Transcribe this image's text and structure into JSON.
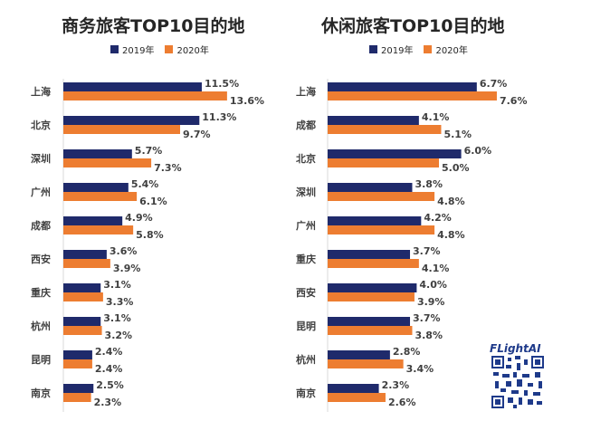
{
  "chart_data": [
    {
      "type": "bar",
      "title": "商务旅客TOP10目的地",
      "categories": [
        "上海",
        "北京",
        "深圳",
        "广州",
        "成都",
        "西安",
        "重庆",
        "杭州",
        "昆明",
        "南京"
      ],
      "series": [
        {
          "name": "2019年",
          "values": [
            11.5,
            11.3,
            5.7,
            5.4,
            4.9,
            3.6,
            3.1,
            3.1,
            2.4,
            2.5
          ],
          "labels": [
            "11.5%",
            "11.3%",
            "5.7%",
            "5.4%",
            "4.9%",
            "3.6%",
            "3.1%",
            "3.1%",
            "2.4%",
            "2.5%"
          ]
        },
        {
          "name": "2020年",
          "values": [
            13.6,
            9.7,
            7.3,
            6.1,
            5.8,
            3.9,
            3.3,
            3.2,
            2.4,
            2.3
          ],
          "labels": [
            "13.6%",
            "9.7%",
            "7.3%",
            "6.1%",
            "5.8%",
            "3.9%",
            "3.3%",
            "3.2%",
            "2.4%",
            "2.3%"
          ]
        }
      ],
      "orientation": "horizontal",
      "legend": "top"
    },
    {
      "type": "bar",
      "title": "休闲旅客TOP10目的地",
      "categories": [
        "上海",
        "成都",
        "北京",
        "深圳",
        "广州",
        "重庆",
        "西安",
        "昆明",
        "杭州",
        "南京"
      ],
      "series": [
        {
          "name": "2019年",
          "values": [
            6.7,
            4.1,
            6.0,
            3.8,
            4.2,
            3.7,
            4.0,
            3.7,
            2.8,
            2.3
          ],
          "labels": [
            "6.7%",
            "4.1%",
            "6.0%",
            "3.8%",
            "4.2%",
            "3.7%",
            "4.0%",
            "3.7%",
            "2.8%",
            "2.3%"
          ]
        },
        {
          "name": "2020年",
          "values": [
            7.6,
            5.1,
            5.0,
            4.8,
            4.8,
            4.1,
            3.9,
            3.8,
            3.4,
            2.6
          ],
          "labels": [
            "7.6%",
            "5.1%",
            "5.0%",
            "4.8%",
            "4.8%",
            "4.1%",
            "3.9%",
            "3.8%",
            "3.4%",
            "2.6%"
          ]
        }
      ],
      "orientation": "horizontal",
      "legend": "top"
    }
  ],
  "colors": {
    "series_2019": "#1f2a6b",
    "series_2020": "#ed7d31"
  },
  "logo": "FLightAI",
  "qr_icon": "qr-code-icon"
}
